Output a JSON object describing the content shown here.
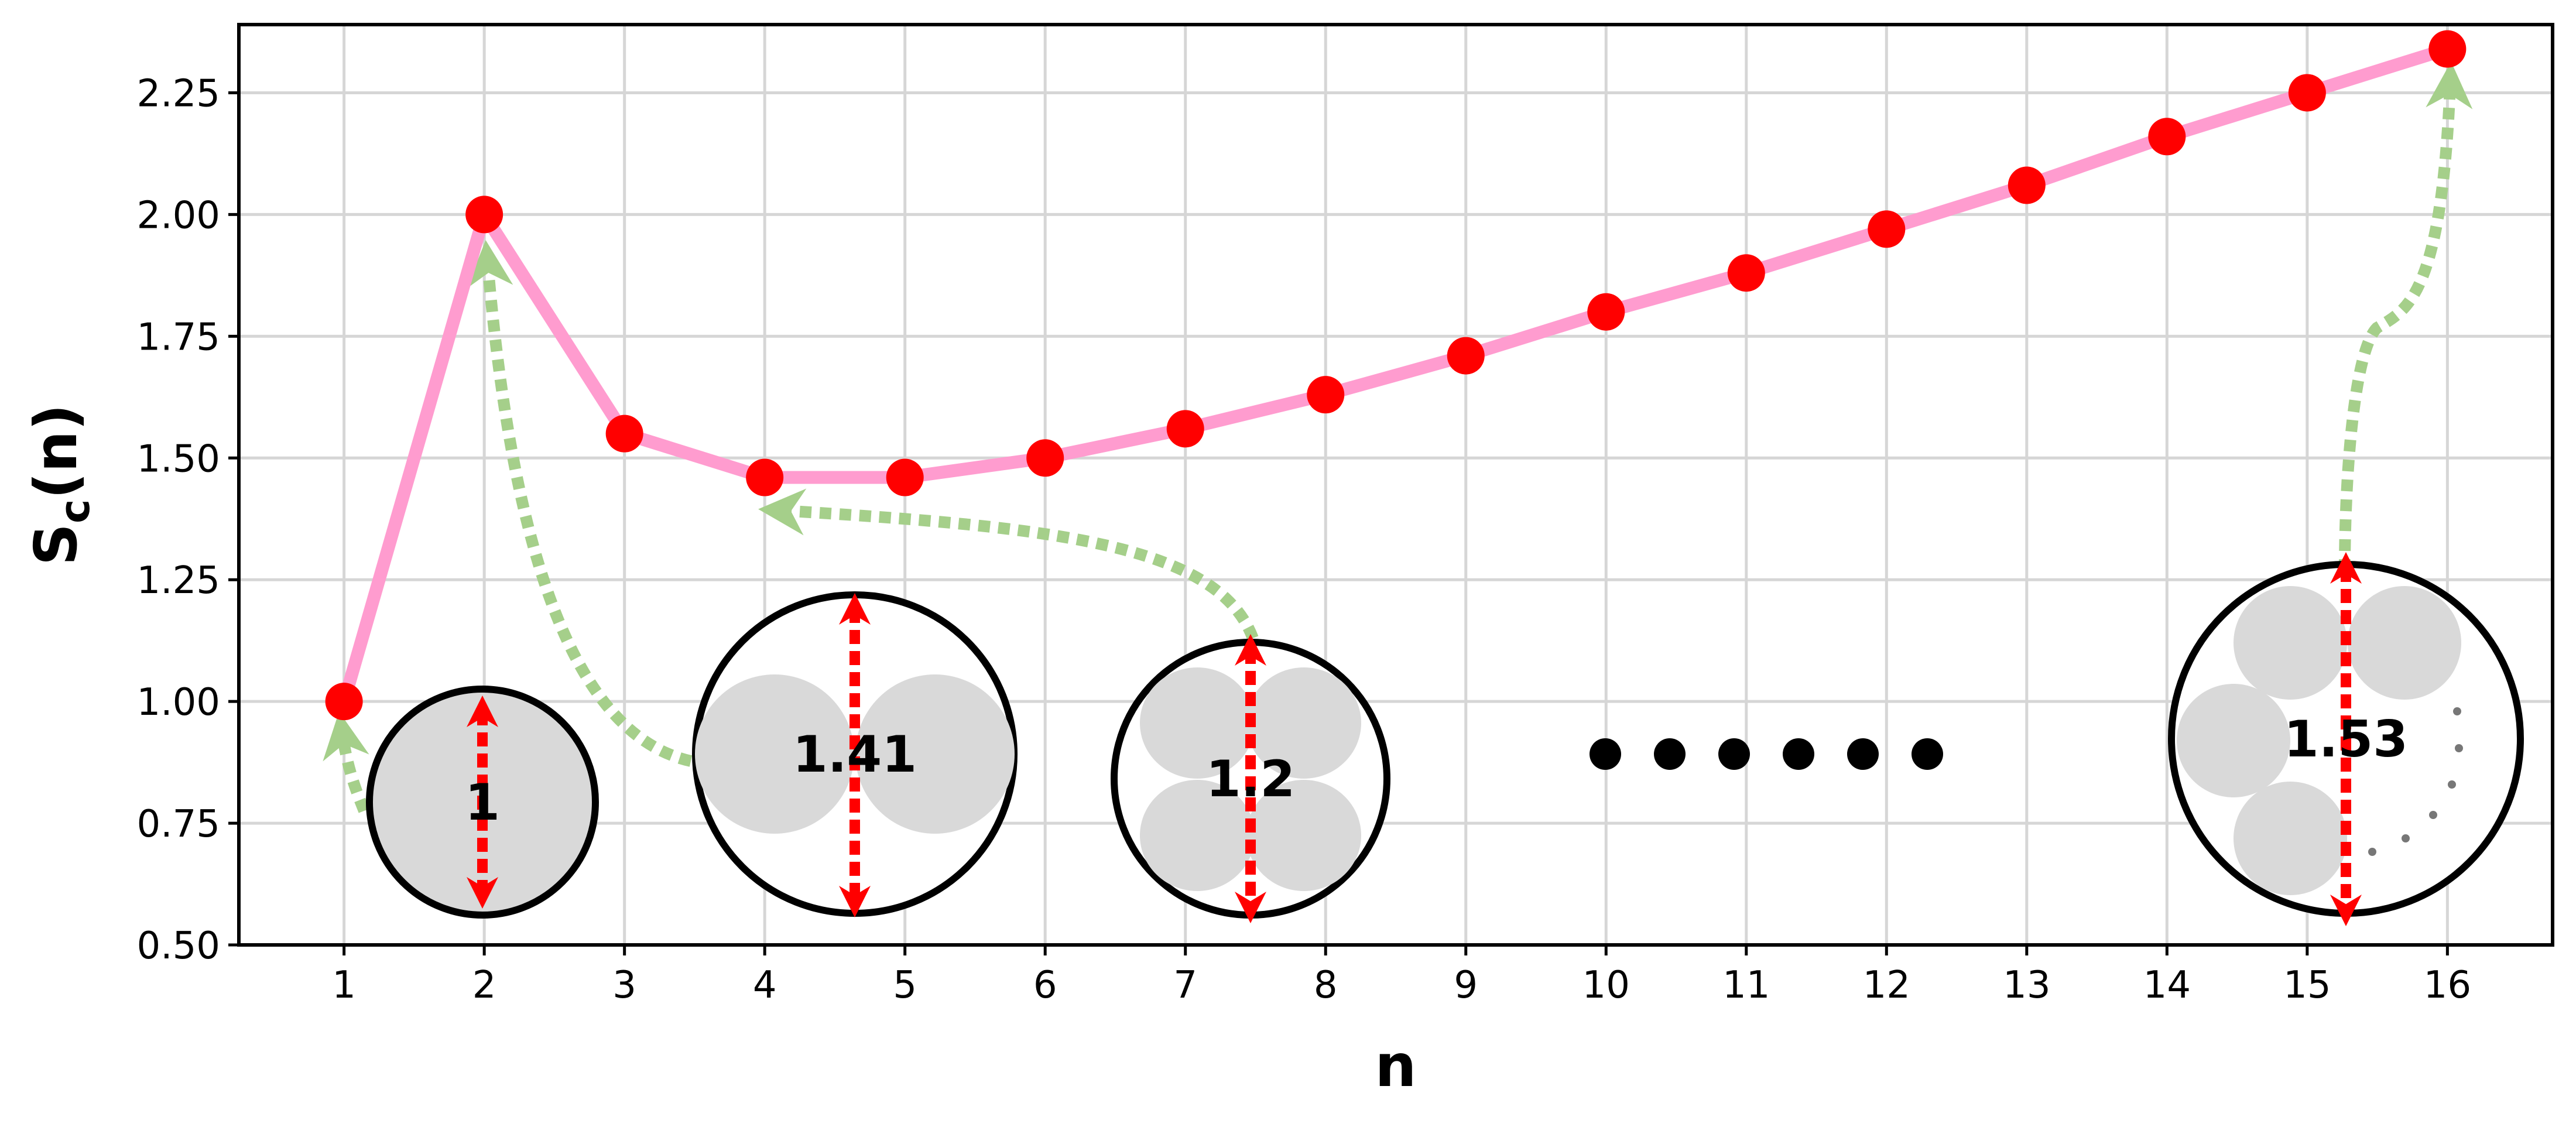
{
  "chart_data": {
    "type": "line",
    "title": "",
    "xlabel": "n",
    "ylabel_main": "S",
    "ylabel_sub": "c",
    "ylabel_tail": "(n)",
    "x": [
      1,
      2,
      3,
      4,
      5,
      6,
      7,
      8,
      9,
      10,
      11,
      12,
      13,
      14,
      15,
      16
    ],
    "y": [
      1.0,
      2.0,
      1.55,
      1.46,
      1.46,
      1.5,
      1.56,
      1.63,
      1.71,
      1.8,
      1.88,
      1.97,
      2.06,
      2.16,
      2.25,
      2.34
    ],
    "xlim": [
      0.25,
      16.75
    ],
    "ylim": [
      0.5,
      2.39
    ],
    "x_ticks": [
      "1",
      "2",
      "3",
      "4",
      "5",
      "6",
      "7",
      "8",
      "9",
      "10",
      "11",
      "12",
      "13",
      "14",
      "15",
      "16"
    ],
    "y_ticks": [
      "0.50",
      "0.75",
      "1.00",
      "1.25",
      "1.50",
      "1.75",
      "2.00",
      "2.25"
    ],
    "y_tick_values": [
      0.5,
      0.75,
      1.0,
      1.25,
      1.5,
      1.75,
      2.0,
      2.25
    ],
    "grid": true,
    "colors": {
      "line": "#ff9ccf",
      "marker": "#ff0000",
      "arrow": "#a5cf8a",
      "dimension": "#ff0000",
      "disk": "#d9d9d9",
      "outline": "#000000",
      "grid": "#d6d6d6"
    },
    "annotations": [
      {
        "label": "1",
        "points_to_n": 1
      },
      {
        "label": "1.41",
        "points_to_n": 2
      },
      {
        "label": "1.2",
        "points_to_n": 4
      },
      {
        "label": "1.53",
        "points_to_n": 16
      }
    ],
    "ellipsis_dots": 6
  }
}
